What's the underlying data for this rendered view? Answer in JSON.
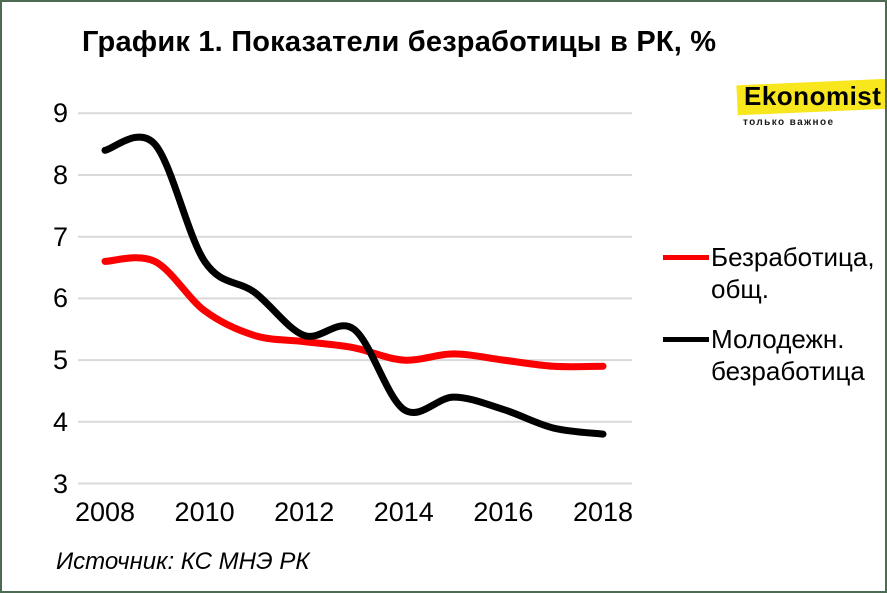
{
  "page": {
    "title": "График 1. Показатели безработицы в РК, %",
    "source": "Источник: КС МНЭ РК",
    "border_color": "#4d6b52",
    "background": "#ffffff"
  },
  "logo": {
    "name": "Ekonomist",
    "tagline": "только важное",
    "highlight_color": "#f8e71c"
  },
  "legend": {
    "items": [
      {
        "name": "Безработица, общ.",
        "line1": "Безработица,",
        "line2": "общ.",
        "color": "#fb0000"
      },
      {
        "name": "Молодежн. безработица",
        "line1": "Молодежн.",
        "line2": "безработица",
        "color": "#000000"
      }
    ]
  },
  "chart_data": {
    "type": "line",
    "title": "График 1. Показатели безработицы в РК, %",
    "x": [
      2008,
      2009,
      2010,
      2011,
      2012,
      2013,
      2014,
      2015,
      2016,
      2017,
      2018
    ],
    "series": [
      {
        "name": "Безработица, общ.",
        "color": "#fb0000",
        "values": [
          6.6,
          6.6,
          5.8,
          5.4,
          5.3,
          5.2,
          5.0,
          5.1,
          5.0,
          4.9,
          4.9
        ]
      },
      {
        "name": "Молодежн. безработица",
        "color": "#000000",
        "values": [
          8.4,
          8.5,
          6.6,
          6.1,
          5.4,
          5.5,
          4.2,
          4.4,
          4.2,
          3.9,
          3.8
        ]
      }
    ],
    "xticks": [
      "2008",
      "2010",
      "2012",
      "2014",
      "2016",
      "2018"
    ],
    "yticks": [
      "3",
      "4",
      "5",
      "6",
      "7",
      "8",
      "9"
    ],
    "xlim": [
      2008,
      2018
    ],
    "ylim": [
      3,
      9
    ],
    "grid": "horizontal",
    "gridline_color": "#d9d9d9",
    "legend_position": "right",
    "line_smoothing": true
  }
}
